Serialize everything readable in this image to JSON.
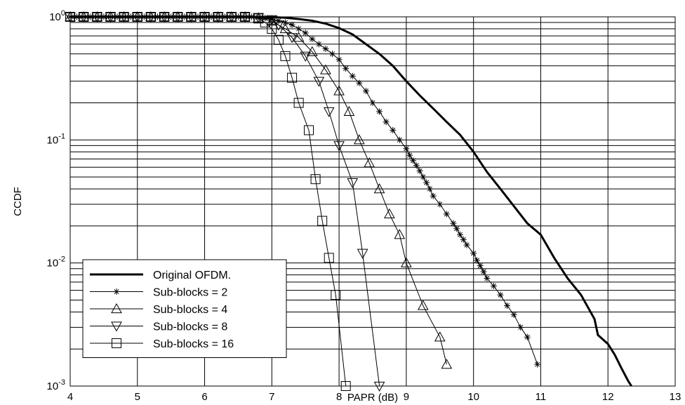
{
  "chart_data": {
    "type": "line",
    "xlabel": "PAPR (dB)",
    "ylabel": "CCDF",
    "xlim": [
      4,
      13
    ],
    "ylim": [
      0.001,
      1
    ],
    "yscale": "log",
    "grid": true,
    "legend_position": "bottom-left",
    "x_ticks": [
      4,
      5,
      6,
      7,
      8,
      9,
      10,
      11,
      12,
      13
    ],
    "x_tick_labels": [
      "4",
      "5",
      "6",
      "7",
      "8",
      "9",
      "10",
      "11",
      "12",
      "13"
    ],
    "y_ticks": [
      {
        "value": 1,
        "base": "10",
        "exp": "0"
      },
      {
        "value": 0.1,
        "base": "10",
        "exp": "-1"
      },
      {
        "value": 0.01,
        "base": "10",
        "exp": "-2"
      },
      {
        "value": 0.001,
        "base": "10",
        "exp": "-3"
      }
    ],
    "series": [
      {
        "name": "Original OFDM.",
        "marker": "none",
        "line_width": 3,
        "x": [
          4.0,
          6.5,
          7.0,
          7.2,
          7.4,
          7.6,
          7.8,
          8.0,
          8.2,
          8.4,
          8.6,
          8.8,
          9.0,
          9.2,
          9.4,
          9.6,
          9.8,
          10.0,
          10.2,
          10.4,
          10.6,
          10.8,
          11.0,
          11.2,
          11.4,
          11.6,
          11.8,
          11.85,
          12.0,
          12.1,
          12.2,
          12.3,
          12.35
        ],
        "y": [
          1.0,
          1.0,
          0.995,
          0.985,
          0.96,
          0.93,
          0.88,
          0.81,
          0.72,
          0.6,
          0.5,
          0.4,
          0.3,
          0.23,
          0.18,
          0.14,
          0.11,
          0.08,
          0.055,
          0.04,
          0.029,
          0.021,
          0.017,
          0.011,
          0.0075,
          0.0055,
          0.0035,
          0.0026,
          0.0022,
          0.0018,
          0.0014,
          0.0011,
          0.001
        ]
      },
      {
        "name": "Sub-blocks = 2",
        "marker": "star",
        "line_width": 1,
        "x": [
          4.0,
          4.1,
          4.2,
          4.3,
          4.4,
          4.5,
          4.6,
          4.7,
          4.8,
          4.9,
          5.0,
          5.1,
          5.2,
          5.3,
          5.4,
          5.5,
          5.6,
          5.7,
          5.8,
          5.9,
          6.0,
          6.1,
          6.2,
          6.3,
          6.4,
          6.5,
          6.6,
          6.7,
          6.8,
          6.9,
          7.0,
          7.1,
          7.2,
          7.3,
          7.4,
          7.5,
          7.6,
          7.7,
          7.8,
          7.9,
          8.0,
          8.1,
          8.2,
          8.3,
          8.4,
          8.5,
          8.6,
          8.7,
          8.8,
          8.9,
          9.0,
          9.05,
          9.1,
          9.15,
          9.2,
          9.25,
          9.3,
          9.35,
          9.4,
          9.5,
          9.6,
          9.7,
          9.75,
          9.8,
          9.85,
          9.9,
          10.0,
          10.05,
          10.1,
          10.15,
          10.2,
          10.3,
          10.4,
          10.5,
          10.6,
          10.7,
          10.8,
          10.95
        ],
        "y": [
          1.0,
          1.0,
          1.0,
          1.0,
          1.0,
          1.0,
          1.0,
          1.0,
          1.0,
          1.0,
          1.0,
          1.0,
          1.0,
          1.0,
          1.0,
          1.0,
          1.0,
          1.0,
          1.0,
          1.0,
          1.0,
          1.0,
          1.0,
          1.0,
          1.0,
          1.0,
          1.0,
          1.0,
          0.99,
          0.98,
          0.96,
          0.93,
          0.9,
          0.86,
          0.8,
          0.74,
          0.66,
          0.6,
          0.55,
          0.5,
          0.45,
          0.38,
          0.33,
          0.29,
          0.25,
          0.2,
          0.17,
          0.14,
          0.12,
          0.1,
          0.085,
          0.075,
          0.068,
          0.062,
          0.056,
          0.05,
          0.045,
          0.04,
          0.035,
          0.03,
          0.025,
          0.021,
          0.019,
          0.017,
          0.0155,
          0.014,
          0.012,
          0.0105,
          0.0095,
          0.0085,
          0.0075,
          0.0065,
          0.0055,
          0.0045,
          0.0038,
          0.003,
          0.0025,
          0.0015
        ]
      },
      {
        "name": "Sub-blocks = 4",
        "marker": "triangle-up",
        "line_width": 1,
        "x": [
          4.0,
          4.2,
          4.4,
          4.6,
          4.8,
          5.0,
          5.2,
          5.4,
          5.6,
          5.8,
          6.0,
          6.2,
          6.4,
          6.6,
          6.8,
          7.0,
          7.2,
          7.4,
          7.6,
          7.8,
          8.0,
          8.15,
          8.3,
          8.45,
          8.6,
          8.75,
          8.9,
          9.0,
          9.25,
          9.5,
          9.6
        ],
        "y": [
          1.0,
          1.0,
          1.0,
          1.0,
          1.0,
          1.0,
          1.0,
          1.0,
          1.0,
          1.0,
          1.0,
          1.0,
          1.0,
          1.0,
          0.98,
          0.92,
          0.8,
          0.68,
          0.52,
          0.37,
          0.25,
          0.17,
          0.1,
          0.065,
          0.04,
          0.025,
          0.017,
          0.01,
          0.0045,
          0.0025,
          0.0015
        ]
      },
      {
        "name": "Sub-blocks = 8",
        "marker": "triangle-down",
        "line_width": 1,
        "x": [
          4.0,
          4.2,
          4.4,
          4.6,
          4.8,
          5.0,
          5.2,
          5.4,
          5.6,
          5.8,
          6.0,
          6.2,
          6.4,
          6.6,
          6.8,
          7.0,
          7.1,
          7.3,
          7.5,
          7.7,
          7.85,
          8.0,
          8.2,
          8.35,
          8.6
        ],
        "y": [
          1.0,
          1.0,
          1.0,
          1.0,
          1.0,
          1.0,
          1.0,
          1.0,
          1.0,
          1.0,
          1.0,
          1.0,
          1.0,
          1.0,
          0.99,
          0.95,
          0.86,
          0.68,
          0.48,
          0.3,
          0.17,
          0.09,
          0.045,
          0.012,
          0.001
        ]
      },
      {
        "name": "Sub-blocks = 16",
        "marker": "square",
        "line_width": 1,
        "x": [
          4.0,
          4.2,
          4.4,
          4.6,
          4.8,
          5.0,
          5.2,
          5.4,
          5.6,
          5.8,
          6.0,
          6.2,
          6.4,
          6.6,
          6.8,
          6.9,
          7.0,
          7.1,
          7.2,
          7.3,
          7.4,
          7.55,
          7.65,
          7.75,
          7.85,
          7.95,
          8.1
        ],
        "y": [
          1.0,
          1.0,
          1.0,
          1.0,
          1.0,
          1.0,
          1.0,
          1.0,
          1.0,
          1.0,
          1.0,
          1.0,
          1.0,
          1.0,
          0.97,
          0.9,
          0.8,
          0.65,
          0.48,
          0.32,
          0.2,
          0.12,
          0.048,
          0.022,
          0.011,
          0.0055,
          0.001
        ]
      }
    ]
  }
}
